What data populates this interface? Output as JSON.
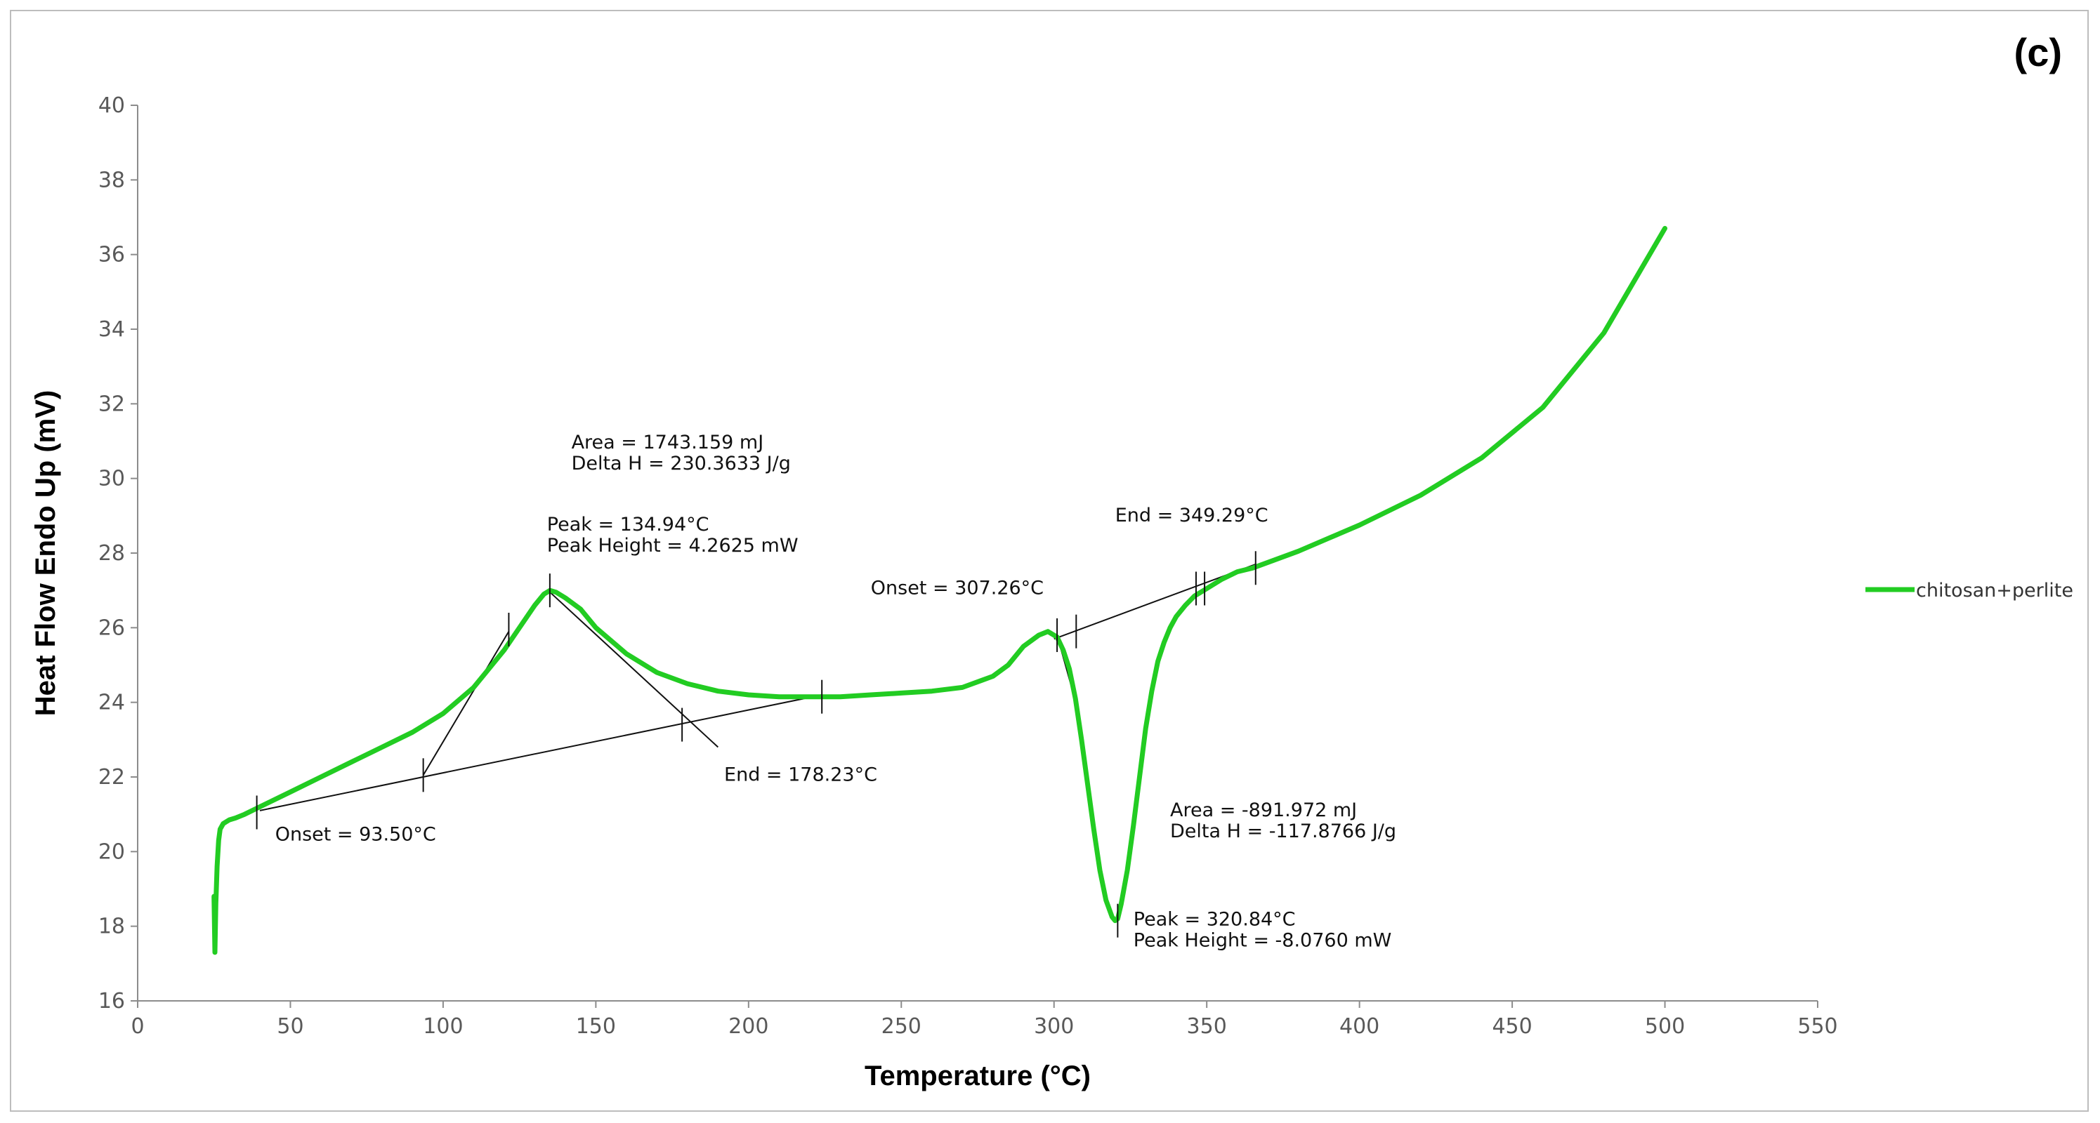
{
  "panel_label": "(c)",
  "chart_data": {
    "type": "line",
    "title": "",
    "xlabel": "Temperature (°C)",
    "ylabel": "Heat Flow Endo Up (mV)",
    "xlim": [
      0,
      550
    ],
    "ylim": [
      16,
      40
    ],
    "xticks": [
      0,
      50,
      100,
      150,
      200,
      250,
      300,
      350,
      400,
      450,
      500,
      550
    ],
    "yticks": [
      16,
      18,
      20,
      22,
      24,
      26,
      28,
      30,
      32,
      34,
      36,
      38,
      40
    ],
    "grid": false,
    "legend_position": "right",
    "series": [
      {
        "name": "chitosan+perlite",
        "color": "#22cc22",
        "x": [
          25,
          25.3,
          25.6,
          26,
          26.5,
          27,
          28,
          29,
          30,
          32,
          35,
          40,
          50,
          60,
          70,
          80,
          90,
          100,
          110,
          120,
          125,
          130,
          133,
          135,
          137,
          140,
          145,
          150,
          160,
          170,
          180,
          190,
          200,
          210,
          220,
          230,
          240,
          250,
          260,
          270,
          280,
          285,
          290,
          295,
          298,
          301,
          303,
          305,
          307,
          309,
          311,
          313,
          315,
          317,
          319,
          320,
          320.84,
          322,
          324,
          326,
          328,
          330,
          332,
          334,
          336,
          338,
          340,
          343,
          346,
          349,
          352,
          355,
          360,
          365,
          370,
          380,
          390,
          400,
          420,
          440,
          460,
          480,
          500
        ],
        "y": [
          18.8,
          17.3,
          18.6,
          19.6,
          20.3,
          20.6,
          20.75,
          20.8,
          20.85,
          20.9,
          21.0,
          21.2,
          21.6,
          22.0,
          22.4,
          22.8,
          23.2,
          23.7,
          24.4,
          25.4,
          26.0,
          26.6,
          26.9,
          27.0,
          26.95,
          26.8,
          26.5,
          26.0,
          25.3,
          24.8,
          24.5,
          24.3,
          24.2,
          24.15,
          24.15,
          24.15,
          24.2,
          24.25,
          24.3,
          24.4,
          24.7,
          25.0,
          25.5,
          25.8,
          25.9,
          25.75,
          25.4,
          24.9,
          24.1,
          23.0,
          21.8,
          20.6,
          19.5,
          18.7,
          18.25,
          18.15,
          18.2,
          18.6,
          19.5,
          20.7,
          22.0,
          23.3,
          24.3,
          25.1,
          25.6,
          26.0,
          26.3,
          26.6,
          26.85,
          27.0,
          27.15,
          27.3,
          27.5,
          27.6,
          27.75,
          28.05,
          28.4,
          28.75,
          29.55,
          30.55,
          31.9,
          33.9,
          36.7
        ]
      }
    ],
    "baseline_lines": [
      {
        "x": [
          40,
          224
        ],
        "y": [
          21.1,
          24.2
        ]
      },
      {
        "x": [
          93.5,
          121.5
        ],
        "y": [
          22.05,
          25.9
        ]
      },
      {
        "x": [
          135,
          190
        ],
        "y": [
          26.95,
          22.8
        ]
      },
      {
        "x": [
          300,
          366
        ],
        "y": [
          25.7,
          27.7
        ]
      },
      {
        "x": [
          301,
          307.5
        ],
        "y": [
          25.8,
          23.9
        ]
      }
    ],
    "markers": [
      {
        "x": 39,
        "y": 21.05
      },
      {
        "x": 93.5,
        "y": 22.05
      },
      {
        "x": 121.5,
        "y": 25.95
      },
      {
        "x": 134.94,
        "y": 27.0
      },
      {
        "x": 178.23,
        "y": 23.4
      },
      {
        "x": 224,
        "y": 24.15
      },
      {
        "x": 301,
        "y": 25.8
      },
      {
        "x": 307.26,
        "y": 25.9
      },
      {
        "x": 320.84,
        "y": 18.15
      },
      {
        "x": 346.5,
        "y": 27.05
      },
      {
        "x": 349.29,
        "y": 27.05
      },
      {
        "x": 366,
        "y": 27.6
      }
    ],
    "annotations": [
      {
        "lines": [
          "Area = 1743.159 mJ",
          "Delta H = 230.3633 J/g"
        ],
        "x": 142,
        "y": 30.8
      },
      {
        "lines": [
          "Peak = 134.94°C",
          "Peak Height = 4.2625 mW"
        ],
        "x": 134,
        "y": 28.6
      },
      {
        "lines": [
          "Onset = 93.50°C"
        ],
        "x": 45,
        "y": 20.3
      },
      {
        "lines": [
          "End = 178.23°C"
        ],
        "x": 192,
        "y": 21.9
      },
      {
        "lines": [
          "Onset = 307.26°C"
        ],
        "x": 240,
        "y": 26.9
      },
      {
        "lines": [
          "End = 349.29°C"
        ],
        "x": 320,
        "y": 28.85
      },
      {
        "lines": [
          "Area = -891.972 mJ",
          "Delta H = -117.8766 J/g"
        ],
        "x": 338,
        "y": 20.95
      },
      {
        "lines": [
          "Peak = 320.84°C",
          "Peak Height = -8.0760 mW"
        ],
        "x": 326,
        "y": 18.02
      }
    ]
  }
}
